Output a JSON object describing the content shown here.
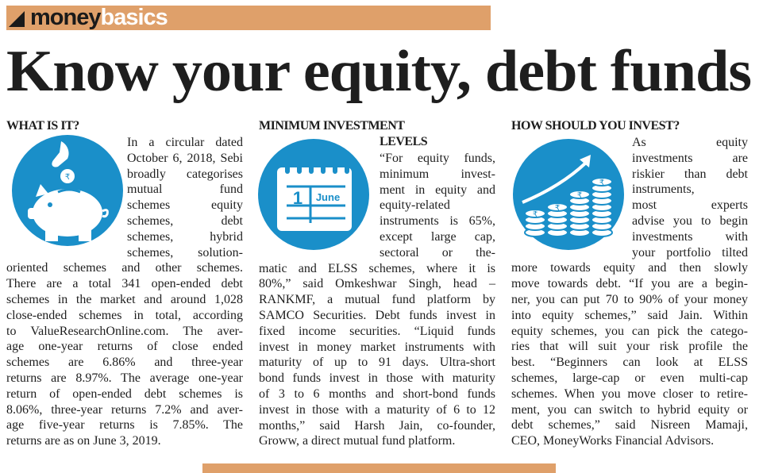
{
  "header": {
    "brand_part1": "money",
    "brand_part2": "basics",
    "accent_color": "#dfa06a"
  },
  "title": "Know your equity, debt funds",
  "icon_color": "#1a8fc9",
  "columns": [
    {
      "heading": [
        "WHAT IS IT?"
      ],
      "icon": "piggy-bank-rupee-coin-icon",
      "narrow_lines": [
        "In a circular dated",
        "October 6, 2018, Sebi",
        "broadly categorises",
        "mutual fund",
        "schemes equity",
        "schemes, debt",
        "schemes, hybrid",
        "schemes, solution-"
      ],
      "wide_lines": [
        "oriented schemes and other schemes.",
        "There are a total 341 open-ended debt",
        "schemes in the market and around 1,028",
        "close-ended schemes in total, according",
        "to ValueResearchOnline.com. The aver-",
        "age one-year returns of close ended",
        "schemes are 6.86% and three-year",
        "returns are 8.97%. The average one-year",
        "return of open-ended debt schemes is",
        "8.06%, three-year returns 7.2% and aver-",
        "age five-year returns is 7.85%. The",
        "returns are as on June 3, 2019."
      ]
    },
    {
      "heading": [
        "MINIMUM INVESTMENT",
        "LEVELS"
      ],
      "icon": "calendar-icon",
      "calendar_day": "1",
      "calendar_month": "June",
      "narrow_lines": [
        "“For equity funds,",
        "minimum invest-",
        "ment in equity and",
        "equity-related",
        "instruments is 65%,",
        "except large cap,",
        "sectoral or the-"
      ],
      "wide_lines": [
        "matic and ELSS schemes, where it is",
        "80%,” said Omkeshwar Singh, head –",
        "RANKMF, a mutual fund platform by",
        "SAMCO Securities. Debt funds invest in",
        "fixed income securities. “Liquid funds",
        "invest in money market instruments with",
        "maturity of up to 91 days. Ultra-short",
        "bond funds invest in those with maturity",
        "of 3 to 6 months and short-bond funds",
        "invest in those with a maturity of 6 to 12",
        "months,” said Harsh Jain, co-founder,",
        "Groww, a direct mutual fund platform."
      ]
    },
    {
      "heading": [
        "HOW SHOULD YOU INVEST?"
      ],
      "icon": "rising-coin-stacks-icon",
      "narrow_lines": [
        "As equity",
        "investments are",
        "riskier than debt",
        "instruments,",
        "most experts",
        "advise you to begin",
        "investments with",
        "your portfolio tilted"
      ],
      "wide_lines": [
        "more towards equity and then slowly",
        "move towards debt. “If you are a begin-",
        "ner, you can put 70 to 90% of your money",
        "into equity schemes,” said Jain. Within",
        "equity schemes, you can pick the catego-",
        "ries that will suit your risk profile the",
        "best. “Beginners can look at ELSS",
        "schemes, large-cap or even multi-cap",
        "schemes. When you move closer to retire-",
        "ment, you can switch to hybrid equity or",
        "debt schemes,” said Nisreen Mamaji,",
        "CEO, MoneyWorks Financial Advisors."
      ]
    }
  ]
}
